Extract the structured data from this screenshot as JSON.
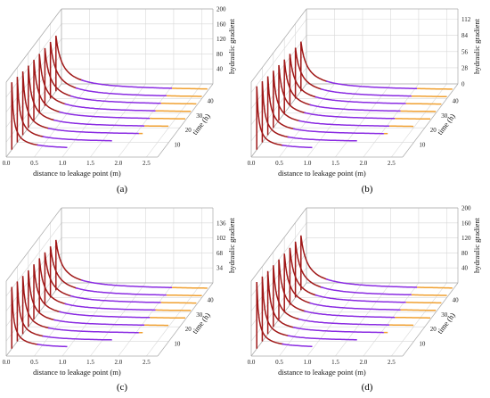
{
  "figure": {
    "panels": [
      {
        "id": "a",
        "label": "(a)"
      },
      {
        "id": "b",
        "label": "(b)"
      },
      {
        "id": "c",
        "label": "(c)"
      },
      {
        "id": "d",
        "label": "(d)"
      }
    ]
  },
  "chart_data": [
    {
      "type": "line",
      "panel": "(a)",
      "xlabel": "distance to leakage point (m)",
      "ylabel": "time (h)",
      "zlabel": "hydraulic gradient",
      "x_ticks": [
        "0.0",
        "0.5",
        "1.0",
        "1.5",
        "2.0",
        "2.5"
      ],
      "y_ticks": [
        "10",
        "20",
        "30",
        "40"
      ],
      "z_ticks": [
        "40",
        "80",
        "120",
        "160",
        "200"
      ],
      "xlim": [
        0,
        2.7
      ],
      "ylim": [
        0,
        50
      ],
      "zlim": [
        0,
        200
      ],
      "grid": true,
      "curve_times_h": [
        5,
        10,
        15,
        20,
        25,
        30,
        35,
        40,
        45
      ],
      "peak_gradient": [
        180,
        175,
        170,
        166,
        162,
        158,
        154,
        151,
        148
      ],
      "front_position_m": [
        1.0,
        1.7,
        2.15,
        2.5,
        2.7,
        2.7,
        2.7,
        2.7,
        2.7
      ],
      "colors": {
        "near": "#a01818",
        "mid": "#8a2be2",
        "far": "#f0a030"
      }
    },
    {
      "type": "line",
      "panel": "(b)",
      "xlabel": "distance to leakage point (m)",
      "ylabel": "time (h)",
      "zlabel": "hydraulic gradient",
      "x_ticks": [
        "0.0",
        "0.5",
        "1.0",
        "1.5",
        "2.0",
        "2.5"
      ],
      "y_ticks": [
        "10",
        "20",
        "30",
        "40"
      ],
      "z_ticks": [
        "0",
        "28",
        "56",
        "84",
        "112"
      ],
      "xlim": [
        0,
        2.7
      ],
      "ylim": [
        0,
        50
      ],
      "zlim": [
        0,
        130
      ],
      "grid": true,
      "curve_times_h": [
        5,
        10,
        15,
        20,
        25,
        30,
        35,
        40,
        45
      ],
      "peak_gradient": [
        110,
        106,
        102,
        99,
        96,
        93,
        90,
        88,
        86
      ],
      "front_position_m": [
        1.0,
        1.7,
        2.15,
        2.5,
        2.7,
        2.7,
        2.7,
        2.7,
        2.7
      ],
      "colors": {
        "near": "#a01818",
        "mid": "#8a2be2",
        "far": "#f0a030"
      }
    },
    {
      "type": "line",
      "panel": "(c)",
      "xlabel": "distance to leakage point (m)",
      "ylabel": "time (h)",
      "zlabel": "hydraulic gradient",
      "x_ticks": [
        "0.0",
        "0.5",
        "1.0",
        "1.5",
        "2.0",
        "2.5"
      ],
      "y_ticks": [
        "10",
        "20",
        "30",
        "40"
      ],
      "z_ticks": [
        "34",
        "68",
        "102",
        "136"
      ],
      "xlim": [
        0,
        2.7
      ],
      "ylim": [
        0,
        50
      ],
      "zlim": [
        0,
        170
      ],
      "grid": true,
      "curve_times_h": [
        5,
        10,
        15,
        20,
        25,
        30,
        35,
        40,
        45
      ],
      "peak_gradient": [
        140,
        136,
        132,
        128,
        125,
        122,
        119,
        116,
        114
      ],
      "front_position_m": [
        1.0,
        1.7,
        2.15,
        2.5,
        2.7,
        2.7,
        2.7,
        2.7,
        2.7
      ],
      "colors": {
        "near": "#a01818",
        "mid": "#8a2be2",
        "far": "#f0a030"
      }
    },
    {
      "type": "line",
      "panel": "(d)",
      "xlabel": "distance to leakage point (m)",
      "ylabel": "time (h)",
      "zlabel": "hydraulic gradient",
      "x_ticks": [
        "0.0",
        "0.5",
        "1.0",
        "1.5",
        "2.0",
        "2.5"
      ],
      "y_ticks": [
        "10",
        "20",
        "30",
        "40"
      ],
      "z_ticks": [
        "40",
        "80",
        "120",
        "160",
        "200"
      ],
      "xlim": [
        0,
        2.7
      ],
      "ylim": [
        0,
        50
      ],
      "zlim": [
        0,
        200
      ],
      "grid": true,
      "curve_times_h": [
        5,
        10,
        15,
        20,
        25,
        30,
        35,
        40,
        45
      ],
      "peak_gradient": [
        178,
        173,
        168,
        164,
        160,
        156,
        152,
        149,
        146
      ],
      "front_position_m": [
        1.0,
        1.7,
        2.15,
        2.5,
        2.7,
        2.7,
        2.7,
        2.7,
        2.7
      ],
      "colors": {
        "near": "#a01818",
        "mid": "#8a2be2",
        "far": "#f0a030"
      }
    }
  ]
}
